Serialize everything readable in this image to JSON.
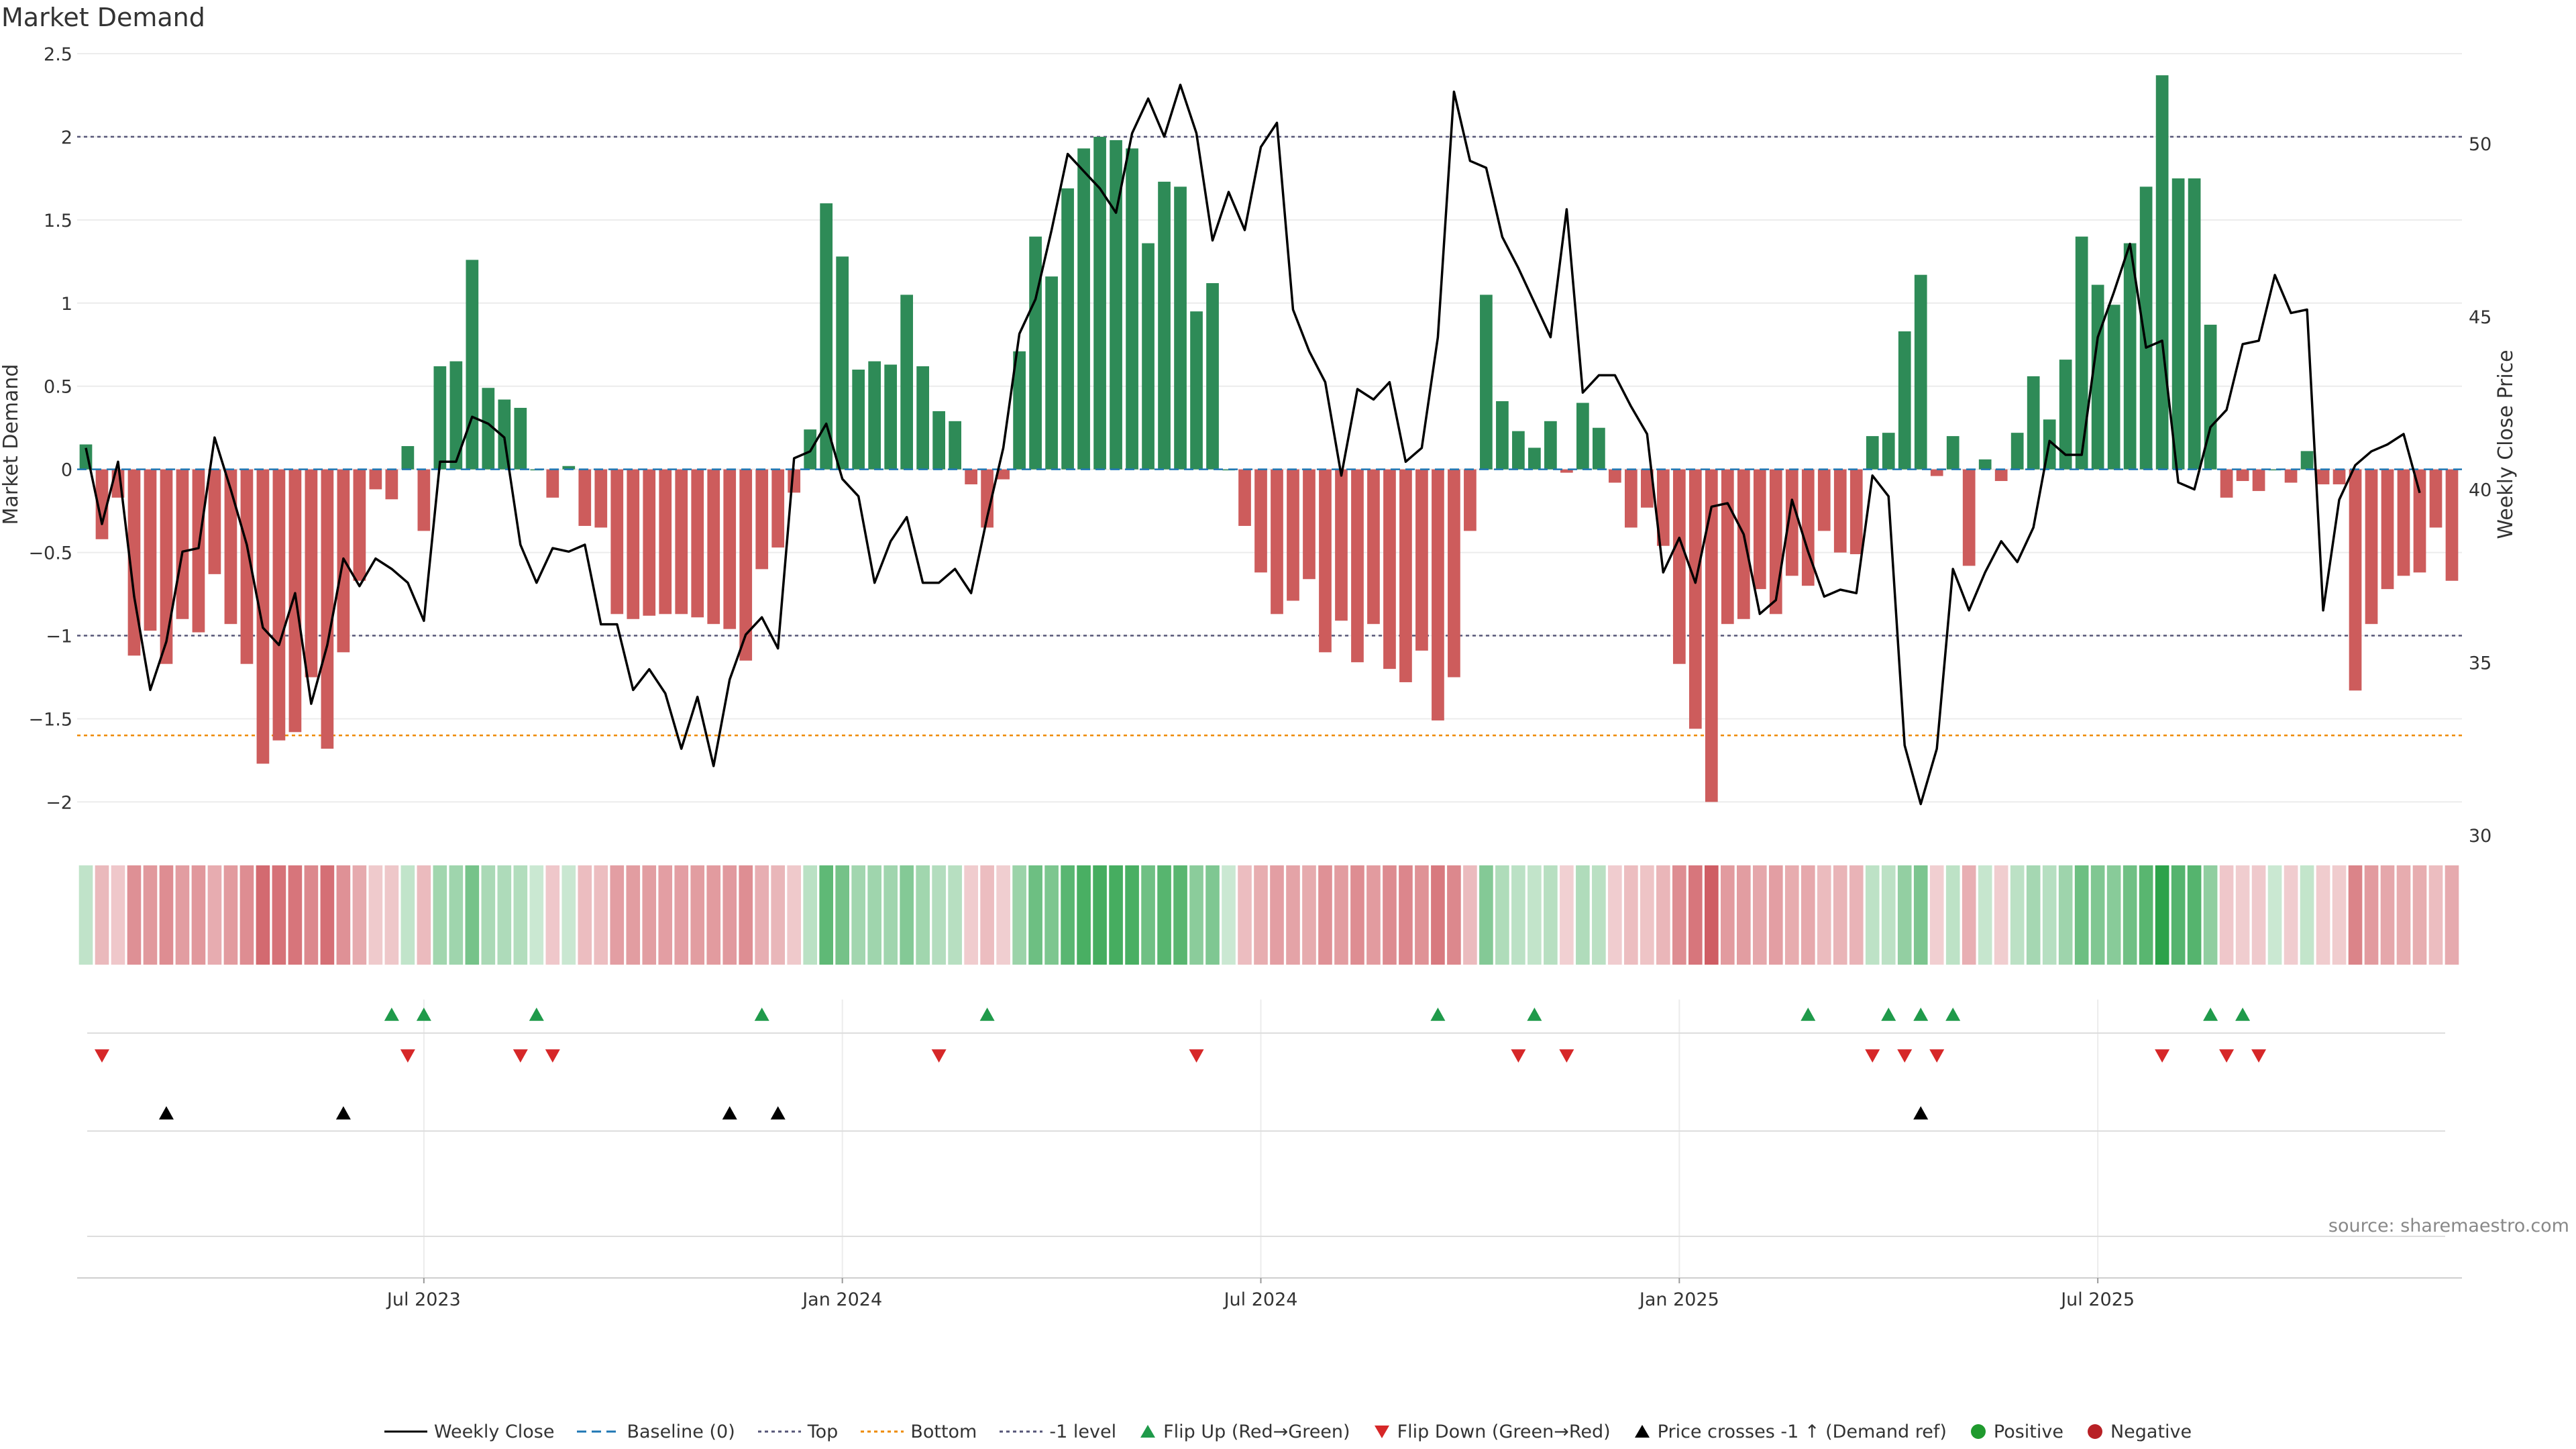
{
  "title": "Market Demand",
  "source": "source: sharemaestro.com",
  "chart_data": {
    "type": "bar",
    "title": "Market Demand",
    "ylabel": "Market Demand",
    "y2label": "Weekly Close Price",
    "ylim": [
      -2.2,
      2.5
    ],
    "y2lim": [
      30,
      52.6
    ],
    "yticks": [
      "2.5",
      "2",
      "1.5",
      "1",
      "0.5",
      "0",
      "−0.5",
      "−1",
      "−1.5",
      "−2"
    ],
    "y2ticks": [
      "50",
      "45",
      "40",
      "35",
      "30"
    ],
    "xticks": [
      {
        "label": "Jul 2023",
        "week": 21
      },
      {
        "label": "Jan 2024",
        "week": 47
      },
      {
        "label": "Jul 2024",
        "week": 73
      },
      {
        "label": "Jan 2025",
        "week": 99
      },
      {
        "label": "Jul 2025",
        "week": 125
      }
    ],
    "reference_lines": {
      "top": 2,
      "bottom": -1.6,
      "minus_one": -1,
      "baseline": 0
    },
    "demand": [
      0.15,
      -0.42,
      -0.17,
      -1.12,
      -0.97,
      -1.17,
      -0.9,
      -0.98,
      -0.63,
      -0.93,
      -1.17,
      -1.77,
      -1.63,
      -1.58,
      -1.25,
      -1.68,
      -1.1,
      -0.67,
      -0.12,
      -0.18,
      0.14,
      -0.37,
      0.62,
      0.65,
      1.26,
      0.49,
      0.42,
      0.37,
      0.0,
      -0.17,
      0.02,
      -0.34,
      -0.35,
      -0.87,
      -0.9,
      -0.88,
      -0.87,
      -0.87,
      -0.89,
      -0.93,
      -0.96,
      -1.15,
      -0.6,
      -0.47,
      -0.14,
      0.24,
      1.6,
      1.28,
      0.6,
      0.65,
      0.63,
      1.05,
      0.62,
      0.35,
      0.29,
      -0.09,
      -0.35,
      -0.06,
      0.71,
      1.4,
      1.16,
      1.69,
      1.93,
      2.0,
      1.98,
      1.93,
      1.36,
      1.73,
      1.7,
      0.95,
      1.12,
      0.0,
      -0.34,
      -0.62,
      -0.87,
      -0.79,
      -0.66,
      -1.1,
      -0.91,
      -1.16,
      -0.93,
      -1.2,
      -1.28,
      -1.09,
      -1.51,
      -1.25,
      -0.37,
      1.05,
      0.41,
      0.23,
      0.13,
      0.29,
      -0.02,
      0.4,
      0.25,
      -0.08,
      -0.35,
      -0.23,
      -0.46,
      -1.17,
      -1.56,
      -2.0,
      -0.93,
      -0.9,
      -0.72,
      -0.87,
      -0.64,
      -0.7,
      -0.37,
      -0.5,
      -0.51,
      0.2,
      0.22,
      0.83,
      1.17,
      -0.04,
      0.2,
      -0.58,
      0.06,
      -0.07,
      0.22,
      0.56,
      0.3,
      0.66,
      1.4,
      1.11,
      0.99,
      1.36,
      1.7,
      2.37,
      1.75,
      1.75,
      0.87,
      -0.17,
      -0.07,
      -0.13,
      0.0,
      -0.08,
      0.11,
      -0.09,
      -0.09,
      -1.33,
      -0.93,
      -0.72,
      -0.64,
      -0.62,
      -0.35,
      -0.67
    ],
    "weekly_close": [
      41.2,
      39.0,
      40.8,
      36.9,
      34.2,
      35.6,
      38.2,
      38.3,
      41.5,
      40.0,
      38.4,
      36.0,
      35.5,
      37.0,
      33.8,
      35.5,
      38.0,
      37.2,
      38.0,
      37.7,
      37.3,
      36.2,
      40.8,
      40.8,
      42.1,
      41.9,
      41.5,
      38.4,
      37.3,
      38.3,
      38.2,
      38.4,
      36.1,
      36.1,
      34.2,
      34.8,
      34.1,
      32.5,
      34.0,
      32.0,
      34.5,
      35.8,
      36.3,
      35.4,
      40.9,
      41.1,
      41.9,
      40.3,
      39.8,
      37.3,
      38.5,
      39.2,
      37.3,
      37.3,
      37.7,
      37.0,
      39.2,
      41.2,
      44.5,
      45.5,
      47.5,
      49.7,
      49.2,
      48.7,
      48.0,
      50.3,
      51.3,
      50.2,
      51.7,
      50.3,
      47.2,
      48.6,
      47.5,
      49.9,
      50.6,
      45.2,
      44.0,
      43.1,
      40.4,
      42.9,
      42.6,
      43.1,
      40.8,
      41.2,
      44.4,
      51.5,
      49.5,
      49.3,
      47.3,
      46.4,
      45.4,
      44.4,
      48.1,
      42.8,
      43.3,
      43.3,
      42.4,
      41.6,
      37.6,
      38.6,
      37.3,
      39.5,
      39.6,
      38.7,
      36.4,
      36.8,
      39.7,
      38.2,
      36.9,
      37.1,
      37.0,
      40.4,
      39.8,
      32.6,
      30.9,
      32.5,
      37.7,
      36.5,
      37.6,
      38.5,
      37.9,
      38.9,
      41.4,
      41.0,
      41.0,
      44.4,
      45.7,
      47.1,
      44.1,
      44.3,
      40.2,
      40.0,
      41.8,
      42.3,
      44.2,
      44.3,
      46.2,
      45.1,
      45.2,
      36.5,
      39.7,
      40.7,
      41.1,
      41.3,
      41.6,
      39.9
    ],
    "flip_up_weeks": [
      19,
      21,
      28,
      42,
      56,
      84,
      90,
      107,
      112,
      114,
      116,
      132,
      134
    ],
    "flip_down_weeks": [
      1,
      20,
      27,
      29,
      53,
      69,
      89,
      92,
      111,
      113,
      115,
      129,
      133,
      135
    ],
    "price_cross_weeks": [
      5,
      16,
      40,
      43,
      114
    ],
    "series": [
      {
        "name": "Weekly Close",
        "kind": "line",
        "color": "#000000"
      },
      {
        "name": "Baseline (0)",
        "kind": "dashed",
        "color": "#1f77b4"
      },
      {
        "name": "Top",
        "kind": "dotted",
        "color": "#555577"
      },
      {
        "name": "Bottom",
        "kind": "dotted",
        "color": "#ee8a00"
      },
      {
        "name": "-1 level",
        "kind": "dotted",
        "color": "#555577"
      },
      {
        "name": "Flip Up (Red→Green)",
        "kind": "tri-up",
        "color": "#1f9a4a"
      },
      {
        "name": "Flip Down (Green→Red)",
        "kind": "tri-down",
        "color": "#d62728"
      },
      {
        "name": "Price crosses -1 ↑ (Demand ref)",
        "kind": "tri-up",
        "color": "#000000"
      },
      {
        "name": "Positive",
        "kind": "dot",
        "color": "#1f9a2e"
      },
      {
        "name": "Negative",
        "kind": "dot",
        "color": "#b82025"
      }
    ],
    "colors": {
      "positive": "#2e8b57",
      "negative": "#cd5c5c",
      "heat_pos": "#2ca24a",
      "heat_neg": "#c9474f"
    }
  }
}
